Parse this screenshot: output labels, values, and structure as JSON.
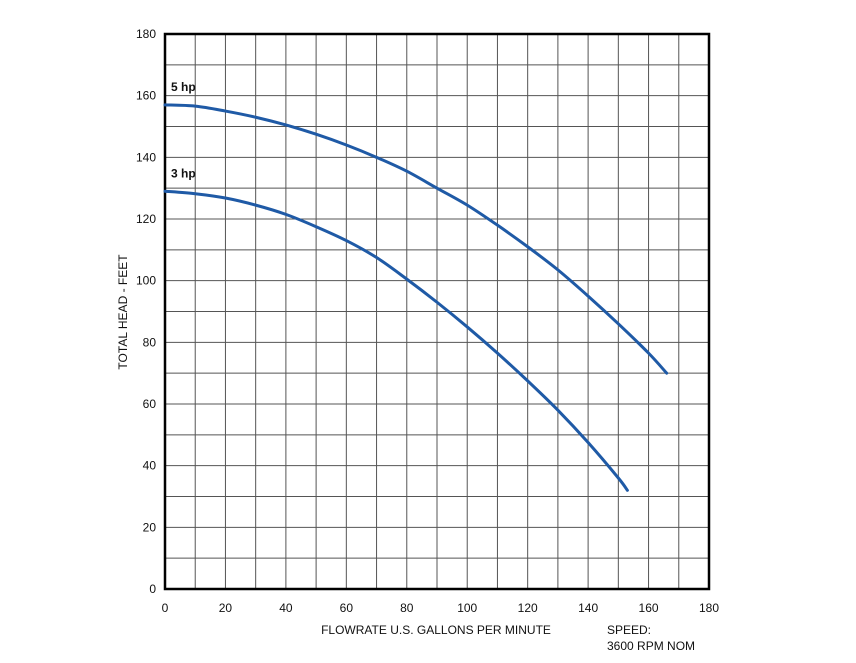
{
  "chart_data": {
    "type": "line",
    "xlabel": "FLOWRATE U.S. GALLONS PER MINUTE",
    "ylabel": "TOTAL HEAD - FEET",
    "xlim": [
      0,
      180
    ],
    "ylim": [
      0,
      180
    ],
    "x_ticks": [
      0,
      20,
      40,
      60,
      80,
      100,
      120,
      140,
      160,
      180
    ],
    "y_ticks": [
      0,
      20,
      40,
      60,
      80,
      100,
      120,
      140,
      160,
      180
    ],
    "grid": true,
    "series": [
      {
        "name": "5 hp",
        "color": "#1f5aa6",
        "x": [
          0,
          10,
          20,
          30,
          40,
          50,
          60,
          70,
          80,
          90,
          100,
          110,
          120,
          130,
          140,
          150,
          160,
          166
        ],
        "y": [
          157,
          156.6,
          155,
          153,
          150.5,
          147.5,
          144,
          140,
          135.5,
          130,
          124.5,
          118,
          111,
          103.5,
          95,
          86,
          76.5,
          70
        ]
      },
      {
        "name": "3 hp",
        "color": "#1f5aa6",
        "x": [
          0,
          10,
          20,
          30,
          40,
          50,
          60,
          70,
          80,
          90,
          100,
          110,
          120,
          130,
          140,
          150,
          153
        ],
        "y": [
          129,
          128.2,
          126.8,
          124.5,
          121.5,
          117.5,
          113,
          107.5,
          100.5,
          93,
          85,
          76.5,
          67.5,
          58,
          47.5,
          36,
          32
        ]
      }
    ],
    "annotations": [
      "SPEED:",
      "3600 RPM NOM"
    ]
  }
}
